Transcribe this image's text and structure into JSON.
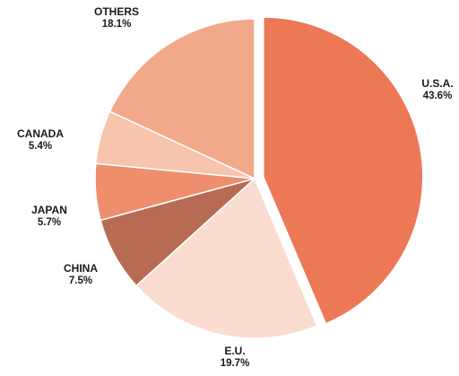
{
  "chart_data": {
    "type": "pie",
    "start_angle_deg": 0,
    "direction": "clockwise",
    "exploded": "U.S.A.",
    "slices": [
      {
        "label": "U.S.A.",
        "value": 43.6,
        "value_label": "43.6%",
        "color": "#EC7856"
      },
      {
        "label": "E.U.",
        "value": 19.7,
        "value_label": "19.7%",
        "color": "#FADDD0"
      },
      {
        "label": "CHINA",
        "value": 7.5,
        "value_label": "7.5%",
        "color": "#B86B53"
      },
      {
        "label": "JAPAN",
        "value": 5.7,
        "value_label": "5.7%",
        "color": "#EE8E6D"
      },
      {
        "label": "CANADA",
        "value": 5.4,
        "value_label": "5.4%",
        "color": "#F7C4AD"
      },
      {
        "label": "OTHERS",
        "value": 18.1,
        "value_label": "18.1%",
        "color": "#F2A98A"
      }
    ]
  }
}
